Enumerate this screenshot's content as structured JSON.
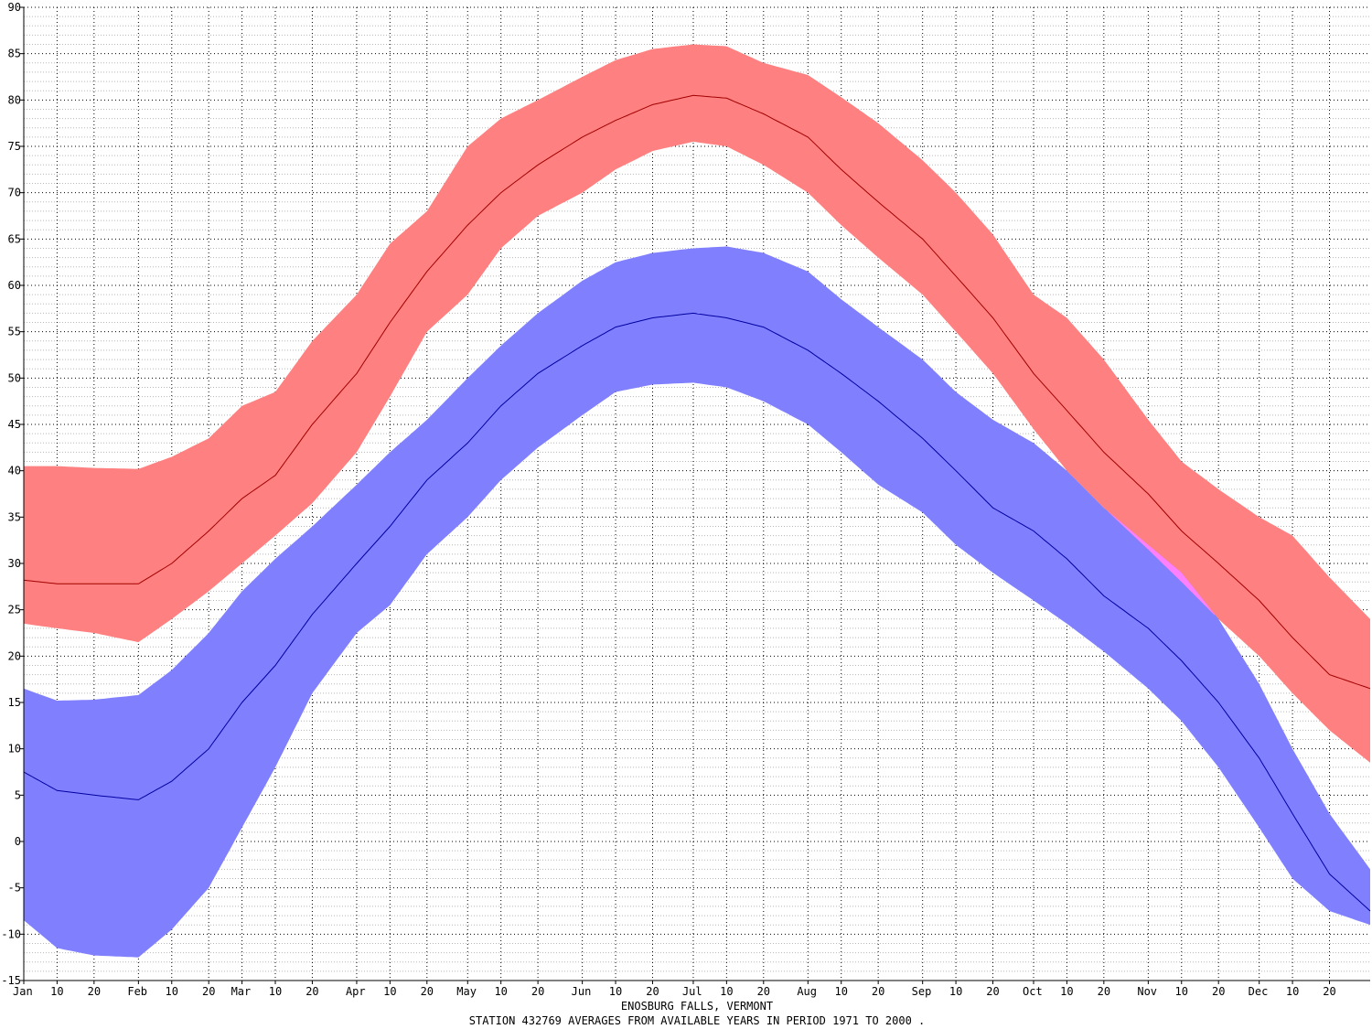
{
  "chart_data": {
    "type": "area",
    "title": "ENOSBURG FALLS, VERMONT",
    "subtitle": "STATION 432769 AVERAGES FROM AVAILABLE YEARS IN PERIOD 1971 TO 2000 .",
    "xlabel": "",
    "ylabel": "",
    "xlim": [
      1,
      365
    ],
    "ylim": [
      -15,
      90
    ],
    "yticks": [
      -15,
      -10,
      -5,
      0,
      5,
      10,
      15,
      20,
      25,
      30,
      35,
      40,
      45,
      50,
      55,
      60,
      65,
      70,
      75,
      80,
      85,
      90
    ],
    "xticks": [
      {
        "day": 1,
        "label": "Jan"
      },
      {
        "day": 10,
        "label": "10"
      },
      {
        "day": 20,
        "label": "20"
      },
      {
        "day": 32,
        "label": "Feb"
      },
      {
        "day": 41,
        "label": "10"
      },
      {
        "day": 51,
        "label": "20"
      },
      {
        "day": 60,
        "label": "Mar"
      },
      {
        "day": 69,
        "label": "10"
      },
      {
        "day": 79,
        "label": "20"
      },
      {
        "day": 91,
        "label": "Apr"
      },
      {
        "day": 100,
        "label": "10"
      },
      {
        "day": 110,
        "label": "20"
      },
      {
        "day": 121,
        "label": "May"
      },
      {
        "day": 130,
        "label": "10"
      },
      {
        "day": 140,
        "label": "20"
      },
      {
        "day": 152,
        "label": "Jun"
      },
      {
        "day": 161,
        "label": "10"
      },
      {
        "day": 171,
        "label": "20"
      },
      {
        "day": 182,
        "label": "Jul"
      },
      {
        "day": 191,
        "label": "10"
      },
      {
        "day": 201,
        "label": "20"
      },
      {
        "day": 213,
        "label": "Aug"
      },
      {
        "day": 222,
        "label": "10"
      },
      {
        "day": 232,
        "label": "20"
      },
      {
        "day": 244,
        "label": "Sep"
      },
      {
        "day": 253,
        "label": "10"
      },
      {
        "day": 263,
        "label": "20"
      },
      {
        "day": 274,
        "label": "Oct"
      },
      {
        "day": 283,
        "label": "10"
      },
      {
        "day": 293,
        "label": "20"
      },
      {
        "day": 305,
        "label": "Nov"
      },
      {
        "day": 314,
        "label": "10"
      },
      {
        "day": 324,
        "label": "20"
      },
      {
        "day": 335,
        "label": "Dec"
      },
      {
        "day": 344,
        "label": "10"
      },
      {
        "day": 354,
        "label": "20"
      }
    ],
    "grid": true,
    "colors": {
      "max_band": "#ff8080",
      "min_band": "#8080ff",
      "overlap": "#ff80ff",
      "max_line": "#a00000",
      "min_line": "#0000a0"
    },
    "x": [
      1,
      10,
      20,
      32,
      41,
      51,
      60,
      69,
      79,
      91,
      100,
      110,
      121,
      130,
      140,
      152,
      161,
      171,
      182,
      191,
      201,
      213,
      222,
      232,
      244,
      253,
      263,
      274,
      283,
      293,
      305,
      314,
      324,
      335,
      344,
      354,
      365
    ],
    "series": [
      {
        "role": "max_upper",
        "values": [
          40.5,
          40.5,
          40.3,
          40.2,
          41.5,
          43.5,
          47.0,
          48.5,
          54.0,
          59.0,
          64.5,
          68.0,
          75.0,
          78.0,
          80.0,
          82.5,
          84.3,
          85.5,
          86.0,
          85.8,
          84.0,
          82.7,
          80.3,
          77.5,
          73.5,
          70.0,
          65.5,
          59.0,
          56.5,
          52.0,
          45.5,
          41.0,
          38.0,
          35.0,
          33.0,
          28.5,
          24.0
        ]
      },
      {
        "role": "max_mean",
        "values": [
          28.2,
          27.8,
          27.8,
          27.8,
          30.0,
          33.5,
          37.0,
          39.5,
          45.0,
          50.5,
          56.0,
          61.5,
          66.5,
          70.0,
          73.0,
          76.0,
          77.8,
          79.5,
          80.5,
          80.2,
          78.5,
          76.0,
          72.5,
          69.0,
          65.0,
          61.0,
          56.5,
          50.5,
          46.5,
          42.0,
          37.5,
          33.5,
          30.0,
          26.0,
          22.0,
          18.0,
          16.5
        ]
      },
      {
        "role": "max_lower",
        "values": [
          23.5,
          23.0,
          22.5,
          21.5,
          24.0,
          27.0,
          30.0,
          33.0,
          36.5,
          42.0,
          48.0,
          55.0,
          59.0,
          64.0,
          67.5,
          70.0,
          72.5,
          74.5,
          75.5,
          75.0,
          73.0,
          70.0,
          66.5,
          63.0,
          59.0,
          55.0,
          50.5,
          44.5,
          40.0,
          36.0,
          31.5,
          28.0,
          24.0,
          20.0,
          16.0,
          12.0,
          8.5
        ]
      },
      {
        "role": "min_upper",
        "values": [
          16.5,
          15.2,
          15.3,
          15.8,
          18.5,
          22.5,
          27.0,
          30.5,
          34.0,
          38.5,
          42.0,
          45.5,
          50.0,
          53.5,
          57.0,
          60.5,
          62.5,
          63.5,
          64.0,
          64.2,
          63.5,
          61.5,
          58.5,
          55.5,
          52.0,
          48.5,
          45.5,
          43.0,
          40.0,
          36.0,
          32.0,
          29.0,
          24.0,
          17.0,
          10.0,
          3.0,
          -3.0
        ]
      },
      {
        "role": "min_mean",
        "values": [
          7.5,
          5.5,
          5.0,
          4.5,
          6.5,
          10.0,
          15.0,
          19.0,
          24.5,
          30.0,
          34.0,
          39.0,
          43.0,
          47.0,
          50.5,
          53.5,
          55.5,
          56.5,
          57.0,
          56.5,
          55.5,
          53.0,
          50.5,
          47.5,
          43.5,
          40.0,
          36.0,
          33.5,
          30.5,
          26.5,
          23.0,
          19.5,
          15.0,
          9.0,
          3.0,
          -3.5,
          -7.5
        ]
      },
      {
        "role": "min_lower",
        "values": [
          -8.5,
          -11.5,
          -12.3,
          -12.5,
          -9.5,
          -5.0,
          1.5,
          8.0,
          16.0,
          22.5,
          25.5,
          31.0,
          35.0,
          39.0,
          42.5,
          46.0,
          48.5,
          49.3,
          49.5,
          49.0,
          47.5,
          45.0,
          42.0,
          38.5,
          35.5,
          32.0,
          29.0,
          26.0,
          23.5,
          20.5,
          16.5,
          13.0,
          8.0,
          1.5,
          -4.0,
          -7.5,
          -9.0
        ]
      }
    ]
  }
}
